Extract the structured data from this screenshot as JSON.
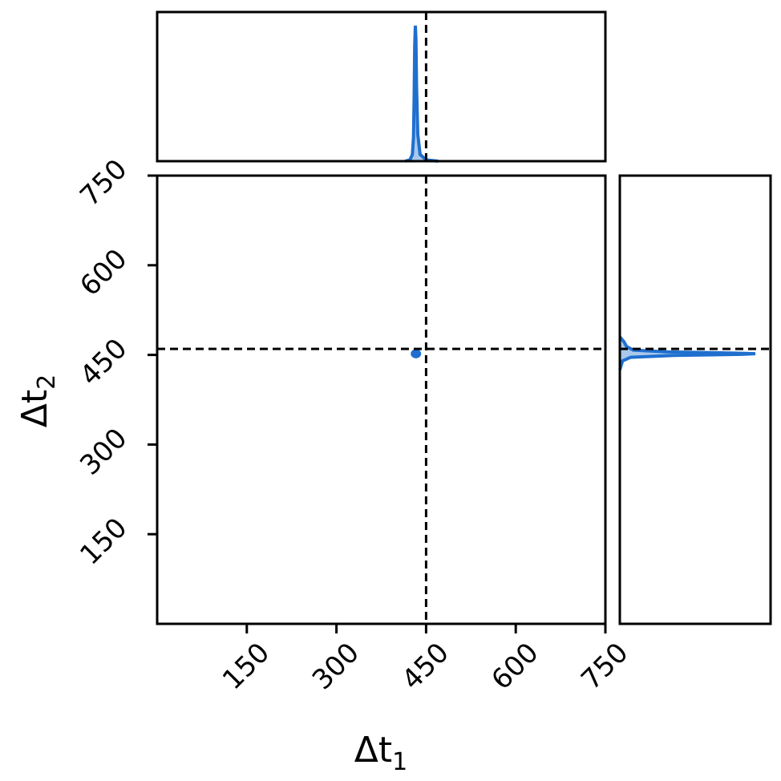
{
  "chart_data": {
    "type": "corner",
    "x_variable": "Δt",
    "x_subscript": "1",
    "y_variable": "Δt",
    "y_subscript": "2",
    "xlim": [
      0,
      750
    ],
    "ylim": [
      0,
      750
    ],
    "x_ticks": [
      150,
      300,
      450,
      600,
      750
    ],
    "y_ticks": [
      150,
      300,
      450,
      600,
      750
    ],
    "truth": {
      "dt1": 450,
      "dt2": 460
    },
    "joint_contour": {
      "center": [
        433,
        452
      ],
      "radius": [
        6,
        5
      ]
    },
    "marginal_dt1": [
      {
        "x": 415,
        "density": 0.0
      },
      {
        "x": 423,
        "density": 0.01
      },
      {
        "x": 427,
        "density": 0.05
      },
      {
        "x": 429,
        "density": 0.18
      },
      {
        "x": 430,
        "density": 0.48
      },
      {
        "x": 431,
        "density": 0.85
      },
      {
        "x": 432,
        "density": 1.0
      },
      {
        "x": 433,
        "density": 0.9
      },
      {
        "x": 434,
        "density": 0.55
      },
      {
        "x": 436,
        "density": 0.2
      },
      {
        "x": 440,
        "density": 0.05
      },
      {
        "x": 450,
        "density": 0.01
      },
      {
        "x": 470,
        "density": 0.0
      }
    ],
    "marginal_dt2": [
      {
        "y": 425,
        "density": 0.0
      },
      {
        "y": 440,
        "density": 0.02
      },
      {
        "y": 446,
        "density": 0.08
      },
      {
        "y": 449,
        "density": 0.4
      },
      {
        "y": 451,
        "density": 0.9
      },
      {
        "y": 452,
        "density": 1.0
      },
      {
        "y": 453,
        "density": 0.85
      },
      {
        "y": 455,
        "density": 0.35
      },
      {
        "y": 458,
        "density": 0.1
      },
      {
        "y": 464,
        "density": 0.05
      },
      {
        "y": 472,
        "density": 0.03
      },
      {
        "y": 480,
        "density": 0.0
      }
    ],
    "colors": {
      "series": "#1f6fcf",
      "fill": "#a9c9ec",
      "truth_line": "#000000",
      "frame": "#000000"
    }
  }
}
